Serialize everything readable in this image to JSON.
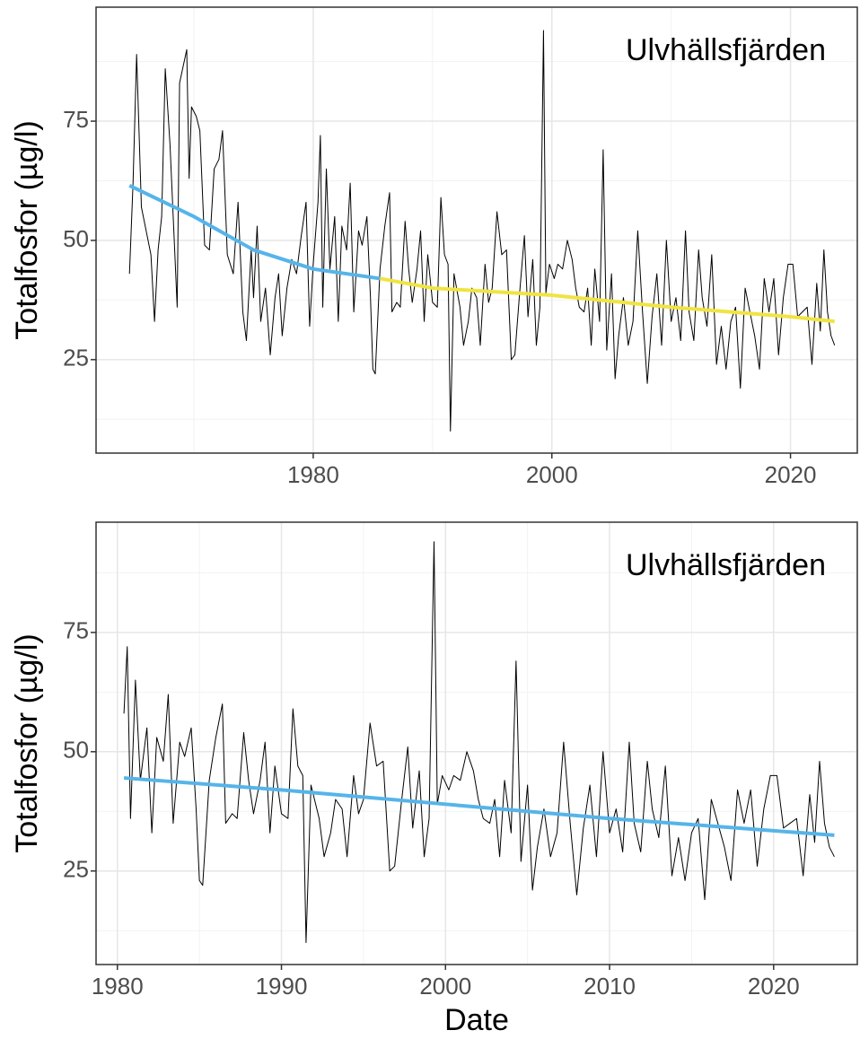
{
  "chart_data": [
    {
      "type": "line",
      "annotation": "Ulvhällsfjärden",
      "y_label": "Totalfosfor (µg/l)",
      "xlim": [
        1961.8,
        2025.6
      ],
      "xticks": [
        1980,
        2000,
        2020
      ],
      "x_minor_grid": [
        1970,
        1990,
        2010
      ],
      "ylim": [
        5.4,
        98.9
      ],
      "yticks": [
        25,
        50,
        75
      ],
      "y_minor_grid": [
        12.5,
        37.5,
        62.5,
        87.5
      ],
      "grid": true,
      "series": [
        {
          "color": "#000000",
          "width": 1,
          "x": [
            1964.6,
            1964.9,
            1965.2,
            1965.6,
            1966.0,
            1966.4,
            1966.7,
            1967.0,
            1967.3,
            1967.6,
            1968.0,
            1968.6,
            1968.8,
            1969.4,
            1969.6,
            1969.8,
            1970.2,
            1970.5,
            1970.9,
            1971.3,
            1971.7,
            1972.1,
            1972.4,
            1972.8,
            1973.3,
            1973.7,
            1974.1,
            1974.4,
            1974.8,
            1975.0,
            1975.3,
            1975.6,
            1976.0,
            1976.4,
            1976.8,
            1977.1,
            1977.4,
            1977.8,
            1978.2,
            1978.6,
            1979.0,
            1979.4,
            1979.7,
            1980.0,
            1980.4,
            1980.6,
            1980.8,
            1981.1,
            1981.4,
            1981.8,
            1982.1,
            1982.4,
            1982.8,
            1983.1,
            1983.4,
            1983.8,
            1984.1,
            1984.5,
            1984.8,
            1985.0,
            1985.2,
            1985.6,
            1986.0,
            1986.4,
            1986.6,
            1987.0,
            1987.3,
            1987.7,
            1988.0,
            1988.3,
            1988.7,
            1989.0,
            1989.3,
            1989.6,
            1990.0,
            1990.4,
            1990.7,
            1991.0,
            1991.3,
            1991.5,
            1991.8,
            1992.3,
            1992.6,
            1993.0,
            1993.3,
            1993.7,
            1994.0,
            1994.4,
            1994.7,
            1995.0,
            1995.4,
            1995.8,
            1996.2,
            1996.6,
            1996.9,
            1997.3,
            1997.7,
            1998.0,
            1998.4,
            1998.7,
            1999.0,
            1999.3,
            1999.5,
            1999.8,
            2000.2,
            2000.5,
            2000.9,
            2001.3,
            2001.7,
            2002.0,
            2002.3,
            2002.7,
            2003.0,
            2003.3,
            2003.6,
            2004.0,
            2004.3,
            2004.6,
            2005.0,
            2005.3,
            2005.6,
            2006.0,
            2006.4,
            2006.8,
            2007.2,
            2007.6,
            2008.0,
            2008.4,
            2008.8,
            2009.2,
            2009.6,
            2010.0,
            2010.4,
            2010.8,
            2011.2,
            2011.5,
            2011.9,
            2012.3,
            2012.6,
            2013.0,
            2013.4,
            2013.8,
            2014.2,
            2014.6,
            2015.0,
            2015.4,
            2015.8,
            2016.2,
            2016.6,
            2017.0,
            2017.4,
            2017.8,
            2018.2,
            2018.6,
            2019.0,
            2019.4,
            2019.8,
            2020.2,
            2020.6,
            2021.0,
            2021.4,
            2021.8,
            2022.2,
            2022.5,
            2022.8,
            2023.1,
            2023.4,
            2023.7
          ],
          "values": [
            43,
            62,
            89,
            57,
            52,
            47,
            33,
            48,
            55,
            86,
            70,
            36,
            83,
            90,
            63,
            78,
            76,
            73,
            49,
            48,
            65,
            67,
            73,
            47,
            43,
            58,
            35,
            29,
            48,
            38,
            53,
            33,
            40,
            26,
            38,
            43,
            30,
            40,
            46,
            43,
            51,
            58,
            32,
            45,
            58,
            72,
            36,
            65,
            44,
            55,
            33,
            53,
            48,
            62,
            35,
            52,
            49,
            55,
            38,
            23,
            22,
            44,
            53,
            60,
            35,
            37,
            36,
            54,
            44,
            37,
            44,
            52,
            33,
            47,
            37,
            36,
            59,
            47,
            45,
            10,
            43,
            36,
            28,
            33,
            40,
            38,
            28,
            45,
            37,
            40,
            56,
            47,
            48,
            25,
            26,
            39,
            51,
            34,
            46,
            28,
            36,
            94,
            39,
            45,
            42,
            45,
            44,
            50,
            46,
            40,
            36,
            35,
            40,
            28,
            44,
            33,
            69,
            27,
            43,
            21,
            30,
            38,
            28,
            33,
            52,
            35,
            20,
            34,
            43,
            28,
            50,
            33,
            38,
            29,
            52,
            35,
            29,
            48,
            38,
            32,
            47,
            24,
            32,
            23,
            33,
            36,
            19,
            40,
            35,
            30,
            23,
            42,
            35,
            42,
            26,
            38,
            45,
            45,
            34,
            35,
            36,
            24,
            41,
            31,
            48,
            35,
            30,
            28
          ]
        },
        {
          "color": "#56B4E9",
          "width": 4,
          "x": [
            1964.6,
            1970,
            1975,
            1980,
            1985.6
          ],
          "values": [
            61.5,
            55,
            48,
            44,
            42
          ]
        },
        {
          "color": "#F0E442",
          "width": 4,
          "x": [
            1985.6,
            1990,
            2000,
            2010,
            2020,
            2023.7
          ],
          "values": [
            42,
            40,
            38.5,
            36,
            34,
            33
          ]
        }
      ]
    },
    {
      "type": "line",
      "annotation": "Ulvhällsfjärden",
      "y_label": "Totalfosfor (µg/l)",
      "x_label": "Date",
      "xlim": [
        1978.7,
        2025.1
      ],
      "xticks": [
        1980,
        1990,
        2000,
        2010,
        2020
      ],
      "x_minor_grid": [
        1985,
        1995,
        2005,
        2015,
        2025
      ],
      "ylim": [
        5.4,
        98.1
      ],
      "yticks": [
        25,
        50,
        75
      ],
      "y_minor_grid": [
        12.5,
        37.5,
        62.5,
        87.5
      ],
      "grid": true,
      "series": [
        {
          "color": "#000000",
          "width": 1,
          "x": [
            1980.4,
            1980.6,
            1980.8,
            1981.1,
            1981.4,
            1981.8,
            1982.1,
            1982.4,
            1982.8,
            1983.1,
            1983.4,
            1983.8,
            1984.1,
            1984.5,
            1984.8,
            1985.0,
            1985.2,
            1985.6,
            1986.0,
            1986.4,
            1986.6,
            1987.0,
            1987.3,
            1987.7,
            1988.0,
            1988.3,
            1988.7,
            1989.0,
            1989.3,
            1989.6,
            1990.0,
            1990.4,
            1990.7,
            1991.0,
            1991.3,
            1991.5,
            1991.8,
            1992.3,
            1992.6,
            1993.0,
            1993.3,
            1993.7,
            1994.0,
            1994.4,
            1994.7,
            1995.0,
            1995.4,
            1995.8,
            1996.2,
            1996.6,
            1996.9,
            1997.3,
            1997.7,
            1998.0,
            1998.4,
            1998.7,
            1999.0,
            1999.3,
            1999.5,
            1999.8,
            2000.2,
            2000.5,
            2000.9,
            2001.3,
            2001.7,
            2002.0,
            2002.3,
            2002.7,
            2003.0,
            2003.3,
            2003.6,
            2004.0,
            2004.3,
            2004.6,
            2005.0,
            2005.3,
            2005.6,
            2006.0,
            2006.4,
            2006.8,
            2007.2,
            2007.6,
            2008.0,
            2008.4,
            2008.8,
            2009.2,
            2009.6,
            2010.0,
            2010.4,
            2010.8,
            2011.2,
            2011.5,
            2011.9,
            2012.3,
            2012.6,
            2013.0,
            2013.4,
            2013.8,
            2014.2,
            2014.6,
            2015.0,
            2015.4,
            2015.8,
            2016.2,
            2016.6,
            2017.0,
            2017.4,
            2017.8,
            2018.2,
            2018.6,
            2019.0,
            2019.4,
            2019.8,
            2020.2,
            2020.6,
            2021.0,
            2021.4,
            2021.8,
            2022.2,
            2022.5,
            2022.8,
            2023.1,
            2023.4,
            2023.7
          ],
          "values": [
            58,
            72,
            36,
            65,
            44,
            55,
            33,
            53,
            48,
            62,
            35,
            52,
            49,
            55,
            38,
            23,
            22,
            44,
            53,
            60,
            35,
            37,
            36,
            54,
            44,
            37,
            44,
            52,
            33,
            47,
            37,
            36,
            59,
            47,
            45,
            10,
            43,
            36,
            28,
            33,
            40,
            38,
            28,
            45,
            37,
            40,
            56,
            47,
            48,
            25,
            26,
            39,
            51,
            34,
            46,
            28,
            36,
            94,
            39,
            45,
            42,
            45,
            44,
            50,
            46,
            40,
            36,
            35,
            40,
            28,
            44,
            33,
            69,
            27,
            43,
            21,
            30,
            38,
            28,
            33,
            52,
            35,
            20,
            34,
            43,
            28,
            50,
            33,
            38,
            29,
            52,
            35,
            29,
            48,
            38,
            32,
            47,
            24,
            32,
            23,
            33,
            36,
            19,
            40,
            35,
            30,
            23,
            42,
            35,
            42,
            26,
            38,
            45,
            45,
            34,
            35,
            36,
            24,
            41,
            31,
            48,
            35,
            30,
            28
          ]
        },
        {
          "color": "#56B4E9",
          "width": 4,
          "x": [
            1980.4,
            1990,
            2000,
            2010,
            2023.7
          ],
          "values": [
            44.5,
            42,
            39,
            36,
            32.5
          ]
        }
      ]
    }
  ]
}
